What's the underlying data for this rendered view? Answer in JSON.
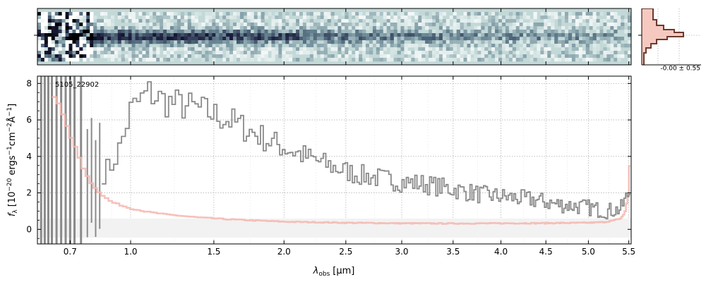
{
  "chart_data": [
    {
      "panel": "2d-spectrum",
      "type": "heatmap",
      "colormap": [
        "#ffffff",
        "#c3d9d8",
        "#5d7a8a",
        "#1c1c3c",
        "#000000"
      ],
      "background_color": "#c3d9d8",
      "x_range_um": [
        0.56,
        5.53
      ],
      "trace_profile": "dark horizontal trace centered on the middle row, strongest near 0.8–2.3 μm, noisy blue edge below 0.75 μm"
    },
    {
      "panel": "profile",
      "type": "line",
      "annotation": "-0.00 ± 0.55",
      "series_colors": {
        "fill": "#f6c9c0",
        "line": "#6b3a2e"
      },
      "gridlines": "dotted"
    },
    {
      "panel": "1d-spectrum",
      "type": "line",
      "annotation": "5105_22902",
      "xlabel_main": "λ",
      "xlabel_sub": "obs",
      "xlabel_unit": "[μm]",
      "ylabel_main": "f",
      "ylabel_sub": "λ",
      "ylabel_unit": "[10",
      "ylabel_exp1": "−20",
      "ylabel_mid": "ergs",
      "ylabel_exp2": "−1",
      "ylabel_mid2": "cm",
      "ylabel_exp3": "−2",
      "ylabel_tail": "Å",
      "ylabel_exp4": "−1",
      "ylabel_end": "]",
      "xscale": "sqrt-like (nonlinear)",
      "xlim": [
        0.56,
        5.53
      ],
      "ylim": [
        -0.8,
        8.4
      ],
      "grid": true,
      "x_ticks": [
        {
          "v": 0.7,
          "label": "0.7"
        },
        {
          "v": 1.0,
          "label": "1.0"
        },
        {
          "v": 1.5,
          "label": "1.5"
        },
        {
          "v": 2.0,
          "label": "2.0"
        },
        {
          "v": 2.5,
          "label": "2.5"
        },
        {
          "v": 3.0,
          "label": "3.0"
        },
        {
          "v": 3.5,
          "label": "3.5"
        },
        {
          "v": 4.0,
          "label": "4.0"
        },
        {
          "v": 4.5,
          "label": "4.5"
        },
        {
          "v": 5.0,
          "label": "5.0"
        },
        {
          "v": 5.5,
          "label": "5.5"
        }
      ],
      "y_ticks": [
        {
          "v": 0,
          "label": "0"
        },
        {
          "v": 2,
          "label": "2"
        },
        {
          "v": 4,
          "label": "4"
        },
        {
          "v": 6,
          "label": "6"
        },
        {
          "v": 8,
          "label": "8"
        }
      ],
      "series": [
        {
          "role": "flux",
          "color": "#8a8a8a",
          "x": [
            0.85,
            0.9,
            0.95,
            1.0,
            1.1,
            1.2,
            1.3,
            1.4,
            1.5,
            1.6,
            1.7,
            1.8,
            1.9,
            2.0,
            2.2,
            2.4,
            2.6,
            2.8,
            3.0,
            3.2,
            3.4,
            3.6,
            3.8,
            4.0,
            4.2,
            4.4,
            4.6,
            4.8,
            5.0,
            5.2,
            5.4,
            5.5
          ],
          "y": [
            3.0,
            3.5,
            4.6,
            6.5,
            7.5,
            7.0,
            6.8,
            6.6,
            6.3,
            6.0,
            5.6,
            5.2,
            4.8,
            4.5,
            3.9,
            3.4,
            3.0,
            2.8,
            2.6,
            2.5,
            2.3,
            2.1,
            1.9,
            1.8,
            1.7,
            1.6,
            1.4,
            1.3,
            1.2,
            1.0,
            1.1,
            2.0
          ]
        },
        {
          "role": "uncertainty",
          "color": "#f4b6ae",
          "x": [
            0.62,
            0.65,
            0.68,
            0.72,
            0.76,
            0.8,
            0.85,
            0.9,
            1.0,
            1.1,
            1.2,
            1.4,
            1.6,
            1.8,
            2.0,
            2.5,
            3.0,
            3.5,
            4.0,
            4.5,
            5.0,
            5.2,
            5.3,
            5.4,
            5.45,
            5.5,
            5.52
          ],
          "y": [
            7.5,
            6.9,
            5.8,
            4.6,
            3.4,
            2.5,
            1.9,
            1.5,
            1.15,
            0.95,
            0.82,
            0.65,
            0.55,
            0.48,
            0.42,
            0.36,
            0.33,
            0.32,
            0.33,
            0.34,
            0.36,
            0.4,
            0.48,
            0.6,
            0.9,
            2.0,
            4.8
          ]
        }
      ]
    }
  ]
}
